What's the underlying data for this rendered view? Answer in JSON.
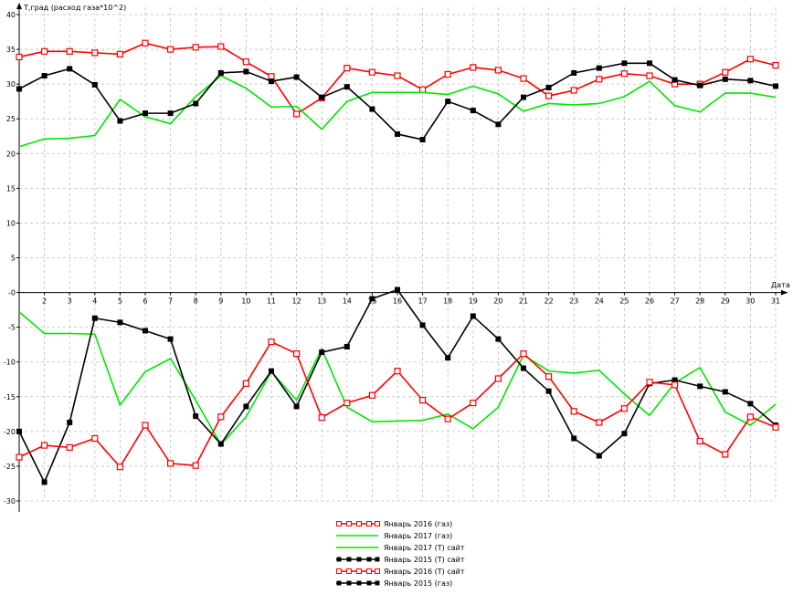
{
  "chart_data": {
    "type": "line",
    "ylabel": "T,град (расход газа*10^2)",
    "xlabel": "Дата",
    "ylim": [
      -30,
      40
    ],
    "y_ticks": [
      "40",
      "35",
      "30",
      "25",
      "20",
      "15",
      "10",
      "5",
      "-0",
      "-5",
      "-10",
      "-15",
      "-20",
      "-25",
      "-30"
    ],
    "x": [
      1,
      2,
      3,
      4,
      5,
      6,
      7,
      8,
      9,
      10,
      11,
      12,
      13,
      14,
      15,
      16,
      17,
      18,
      19,
      20,
      21,
      22,
      23,
      24,
      25,
      26,
      27,
      28,
      29,
      30,
      31
    ],
    "x_ticks": [
      "2",
      "3",
      "4",
      "5",
      "6",
      "7",
      "8",
      "9",
      "10",
      "11",
      "12",
      "13",
      "14",
      "15",
      "16",
      "17",
      "18",
      "19",
      "20",
      "21",
      "22",
      "23",
      "24",
      "25",
      "26",
      "27",
      "28",
      "29",
      "30",
      "31"
    ],
    "grid": true,
    "legend_position": "bottom-center",
    "series": [
      {
        "name": "Январь 2016 (газ)",
        "color": "#ff0000",
        "marker": "open-square",
        "values": [
          33.9,
          34.7,
          34.7,
          34.5,
          34.3,
          35.9,
          35.0,
          35.3,
          35.4,
          33.2,
          31.1,
          25.7,
          28.0,
          32.3,
          31.7,
          31.2,
          29.2,
          31.4,
          32.4,
          32.0,
          30.8,
          28.3,
          29.1,
          30.7,
          31.5,
          31.2,
          30.0,
          30.0,
          31.7,
          33.6,
          32.7
        ]
      },
      {
        "name": "Январь 2017 (газ)",
        "color": "#00e600",
        "marker": "none",
        "values": [
          21.0,
          22.1,
          22.2,
          22.6,
          27.8,
          25.3,
          24.3,
          28.2,
          31.2,
          29.4,
          26.7,
          26.8,
          23.5,
          27.5,
          28.8,
          28.8,
          28.8,
          28.5,
          29.7,
          28.6,
          26.1,
          27.2,
          27.0,
          27.2,
          28.2,
          30.4,
          26.9,
          26.0,
          28.7,
          28.7,
          28.1
        ]
      },
      {
        "name": "Январь 2017 (Т) сайт",
        "color": "#00e600",
        "marker": "none",
        "values": [
          -2.8,
          -5.9,
          -5.9,
          -6.0,
          -16.2,
          -11.4,
          -9.5,
          -15.5,
          -21.9,
          -17.9,
          -11.4,
          -15.5,
          -8.1,
          -16.5,
          -18.6,
          -18.5,
          -18.4,
          -17.5,
          -19.6,
          -16.5,
          -9.0,
          -11.3,
          -11.6,
          -11.2,
          -14.6,
          -17.7,
          -13.0,
          -10.8,
          -17.2,
          -19.1,
          -16.1
        ]
      },
      {
        "name": "Январь 2015 (Т) сайт",
        "color": "#000000",
        "marker": "filled-square",
        "values": [
          -20.0,
          -27.3,
          -18.7,
          -3.7,
          -4.3,
          -5.5,
          -6.7,
          -17.8,
          -21.8,
          -16.4,
          -11.3,
          -16.4,
          -8.6,
          -7.8,
          -0.9,
          0.4,
          -4.7,
          -9.4,
          -3.4,
          -6.7,
          -10.9,
          -14.2,
          -21.0,
          -23.5,
          -20.3,
          -13.1,
          -12.6,
          -13.5,
          -14.3,
          -16.0,
          -19.1
        ]
      },
      {
        "name": "Январь 2016 (Т) сайт",
        "color": "#ff0000",
        "marker": "open-square",
        "values": [
          -23.7,
          -22.0,
          -22.3,
          -21.0,
          -25.1,
          -19.1,
          -24.6,
          -24.9,
          -17.9,
          -13.1,
          -7.1,
          -8.8,
          -18.0,
          -15.9,
          -14.8,
          -11.3,
          -15.5,
          -18.2,
          -15.9,
          -12.4,
          -8.8,
          -12.1,
          -17.1,
          -18.7,
          -16.7,
          -12.9,
          -13.3,
          -21.4,
          -23.3,
          -17.9,
          -19.4
        ]
      },
      {
        "name": "Январь 2015 (газ)",
        "color": "#000000",
        "marker": "filled-square",
        "values": [
          29.3,
          31.2,
          32.2,
          29.9,
          24.7,
          25.8,
          25.8,
          27.2,
          31.6,
          31.8,
          30.4,
          31.0,
          28.1,
          29.6,
          26.4,
          22.8,
          22.0,
          27.5,
          26.2,
          24.2,
          28.1,
          29.5,
          31.6,
          32.3,
          33.0,
          33.0,
          30.6,
          29.8,
          30.7,
          30.5,
          29.7
        ]
      }
    ]
  }
}
